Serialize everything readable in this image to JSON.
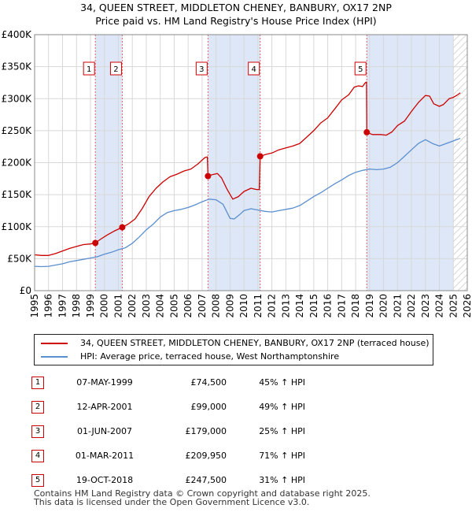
{
  "title_line1": "34, QUEEN STREET, MIDDLETON CHENEY, BANBURY, OX17 2NP",
  "title_line2": "Price paid vs. HM Land Registry's House Price Index (HPI)",
  "colors": {
    "property": "#cc0000",
    "hpi": "#5b8fd0",
    "shade": "#dde7f7",
    "marker_line": "#e06060"
  },
  "chart_data": {
    "type": "line",
    "xlim": [
      1995,
      2026
    ],
    "ylim": [
      0,
      400000
    ],
    "y_ticks": [
      0,
      50000,
      100000,
      150000,
      200000,
      250000,
      300000,
      350000,
      400000
    ],
    "y_tick_labels": [
      "£0",
      "£50K",
      "£100K",
      "£150K",
      "£200K",
      "£250K",
      "£300K",
      "£350K",
      "£400K"
    ],
    "x_ticks": [
      1995,
      1996,
      1997,
      1998,
      1999,
      2000,
      2001,
      2002,
      2003,
      2004,
      2005,
      2006,
      2007,
      2008,
      2009,
      2010,
      2011,
      2012,
      2013,
      2014,
      2015,
      2016,
      2017,
      2018,
      2019,
      2020,
      2021,
      2022,
      2023,
      2024,
      2025,
      2026
    ],
    "x_tick_labels": [
      "1995",
      "1996",
      "1997",
      "1998",
      "1999",
      "2000",
      "2001",
      "2002",
      "2003",
      "2004",
      "2005",
      "2006",
      "2007",
      "2008",
      "2009",
      "2010",
      "2011",
      "2012",
      "2013",
      "2014",
      "2015",
      "2016",
      "2017",
      "2018",
      "2019",
      "2020",
      "2021",
      "2022",
      "2023",
      "2024",
      "2025",
      "2026"
    ],
    "grid": true,
    "shaded_spans": [
      [
        1999.35,
        2001.28
      ],
      [
        2007.42,
        2011.16
      ],
      [
        2018.8,
        2025.0
      ]
    ],
    "hatched_span": [
      2025.0,
      2026
    ],
    "series": [
      {
        "name": "34, QUEEN STREET, MIDDLETON CHENEY, BANBURY, OX17 2NP (terraced house)",
        "color": "#cc0000",
        "points": [
          [
            1995.0,
            56000
          ],
          [
            1995.5,
            55000
          ],
          [
            1996.0,
            55000
          ],
          [
            1996.5,
            58000
          ],
          [
            1997.0,
            62000
          ],
          [
            1997.5,
            66000
          ],
          [
            1998.0,
            69000
          ],
          [
            1998.5,
            72000
          ],
          [
            1999.0,
            73000
          ],
          [
            1999.35,
            74500
          ],
          [
            1999.7,
            80000
          ],
          [
            2000.2,
            87000
          ],
          [
            2000.7,
            93000
          ],
          [
            2001.28,
            99000
          ],
          [
            2001.7,
            104000
          ],
          [
            2002.2,
            112000
          ],
          [
            2002.7,
            128000
          ],
          [
            2003.2,
            147000
          ],
          [
            2003.7,
            160000
          ],
          [
            2004.2,
            170000
          ],
          [
            2004.7,
            178000
          ],
          [
            2005.2,
            182000
          ],
          [
            2005.7,
            187000
          ],
          [
            2006.2,
            190000
          ],
          [
            2006.7,
            198000
          ],
          [
            2007.2,
            208000
          ],
          [
            2007.38,
            209000
          ],
          [
            2007.42,
            179000
          ],
          [
            2007.7,
            181000
          ],
          [
            2008.1,
            183000
          ],
          [
            2008.4,
            176000
          ],
          [
            2008.8,
            158000
          ],
          [
            2009.2,
            143000
          ],
          [
            2009.6,
            147000
          ],
          [
            2010.0,
            155000
          ],
          [
            2010.5,
            160000
          ],
          [
            2010.9,
            158000
          ],
          [
            2011.1,
            158000
          ],
          [
            2011.16,
            209950
          ],
          [
            2011.6,
            213000
          ],
          [
            2012.0,
            215000
          ],
          [
            2012.5,
            220000
          ],
          [
            2013.0,
            223000
          ],
          [
            2013.5,
            226000
          ],
          [
            2014.0,
            230000
          ],
          [
            2014.5,
            240000
          ],
          [
            2015.0,
            250000
          ],
          [
            2015.5,
            262000
          ],
          [
            2016.0,
            270000
          ],
          [
            2016.5,
            284000
          ],
          [
            2017.0,
            298000
          ],
          [
            2017.5,
            306000
          ],
          [
            2017.9,
            318000
          ],
          [
            2018.2,
            320000
          ],
          [
            2018.5,
            319000
          ],
          [
            2018.7,
            325000
          ],
          [
            2018.78,
            326000
          ],
          [
            2018.8,
            247500
          ],
          [
            2019.2,
            244000
          ],
          [
            2019.8,
            244000
          ],
          [
            2020.2,
            243000
          ],
          [
            2020.6,
            248000
          ],
          [
            2021.0,
            258000
          ],
          [
            2021.5,
            265000
          ],
          [
            2022.0,
            280000
          ],
          [
            2022.5,
            294000
          ],
          [
            2023.0,
            305000
          ],
          [
            2023.3,
            304000
          ],
          [
            2023.6,
            292000
          ],
          [
            2024.0,
            288000
          ],
          [
            2024.3,
            291000
          ],
          [
            2024.7,
            300000
          ],
          [
            2025.0,
            302000
          ],
          [
            2025.3,
            306000
          ],
          [
            2025.5,
            309000
          ]
        ]
      },
      {
        "name": "HPI: Average price, terraced house, West Northamptonshire",
        "color": "#5b8fd0",
        "points": [
          [
            1995.0,
            38000
          ],
          [
            1995.5,
            37500
          ],
          [
            1996.0,
            38000
          ],
          [
            1996.5,
            40000
          ],
          [
            1997.0,
            42000
          ],
          [
            1997.5,
            45000
          ],
          [
            1998.0,
            47000
          ],
          [
            1998.5,
            49000
          ],
          [
            1999.0,
            51000
          ],
          [
            1999.5,
            53000
          ],
          [
            2000.0,
            57000
          ],
          [
            2000.5,
            60000
          ],
          [
            2001.0,
            64000
          ],
          [
            2001.5,
            67000
          ],
          [
            2002.0,
            74000
          ],
          [
            2002.5,
            84000
          ],
          [
            2003.0,
            95000
          ],
          [
            2003.5,
            104000
          ],
          [
            2004.0,
            115000
          ],
          [
            2004.5,
            122000
          ],
          [
            2005.0,
            125000
          ],
          [
            2005.5,
            127000
          ],
          [
            2006.0,
            130000
          ],
          [
            2006.5,
            134000
          ],
          [
            2007.0,
            139000
          ],
          [
            2007.5,
            143000
          ],
          [
            2008.0,
            142000
          ],
          [
            2008.5,
            135000
          ],
          [
            2009.0,
            113000
          ],
          [
            2009.3,
            112000
          ],
          [
            2009.7,
            119000
          ],
          [
            2010.0,
            125000
          ],
          [
            2010.5,
            128000
          ],
          [
            2011.0,
            126000
          ],
          [
            2011.5,
            124000
          ],
          [
            2012.0,
            123000
          ],
          [
            2012.5,
            125000
          ],
          [
            2013.0,
            127000
          ],
          [
            2013.5,
            129000
          ],
          [
            2014.0,
            133000
          ],
          [
            2014.5,
            140000
          ],
          [
            2015.0,
            147000
          ],
          [
            2015.5,
            153000
          ],
          [
            2016.0,
            160000
          ],
          [
            2016.5,
            167000
          ],
          [
            2017.0,
            173000
          ],
          [
            2017.5,
            180000
          ],
          [
            2018.0,
            185000
          ],
          [
            2018.5,
            188000
          ],
          [
            2019.0,
            190000
          ],
          [
            2019.5,
            189000
          ],
          [
            2020.0,
            190000
          ],
          [
            2020.5,
            193000
          ],
          [
            2021.0,
            200000
          ],
          [
            2021.5,
            210000
          ],
          [
            2022.0,
            220000
          ],
          [
            2022.5,
            230000
          ],
          [
            2023.0,
            236000
          ],
          [
            2023.5,
            230000
          ],
          [
            2024.0,
            226000
          ],
          [
            2024.5,
            230000
          ],
          [
            2025.0,
            234000
          ],
          [
            2025.5,
            238000
          ]
        ]
      }
    ],
    "markers": [
      {
        "id": "1",
        "x": 1999.35,
        "y": 74500
      },
      {
        "id": "2",
        "x": 2001.28,
        "y": 99000
      },
      {
        "id": "3",
        "x": 2007.42,
        "y": 179000
      },
      {
        "id": "4",
        "x": 2011.16,
        "y": 209950
      },
      {
        "id": "5",
        "x": 2018.8,
        "y": 247500
      }
    ]
  },
  "legend": {
    "property_label": "34, QUEEN STREET, MIDDLETON CHENEY, BANBURY, OX17 2NP (terraced house)",
    "hpi_label": "HPI: Average price, terraced house, West Northamptonshire"
  },
  "sales": [
    {
      "num": "1",
      "date": "07-MAY-1999",
      "price": "£74,500",
      "hpi": "45% ↑ HPI"
    },
    {
      "num": "2",
      "date": "12-APR-2001",
      "price": "£99,000",
      "hpi": "49% ↑ HPI"
    },
    {
      "num": "3",
      "date": "01-JUN-2007",
      "price": "£179,000",
      "hpi": "25% ↑ HPI"
    },
    {
      "num": "4",
      "date": "01-MAR-2011",
      "price": "£209,950",
      "hpi": "71% ↑ HPI"
    },
    {
      "num": "5",
      "date": "19-OCT-2018",
      "price": "£247,500",
      "hpi": "31% ↑ HPI"
    }
  ],
  "footer_line1": "Contains HM Land Registry data © Crown copyright and database right 2025.",
  "footer_line2": "This data is licensed under the Open Government Licence v3.0."
}
